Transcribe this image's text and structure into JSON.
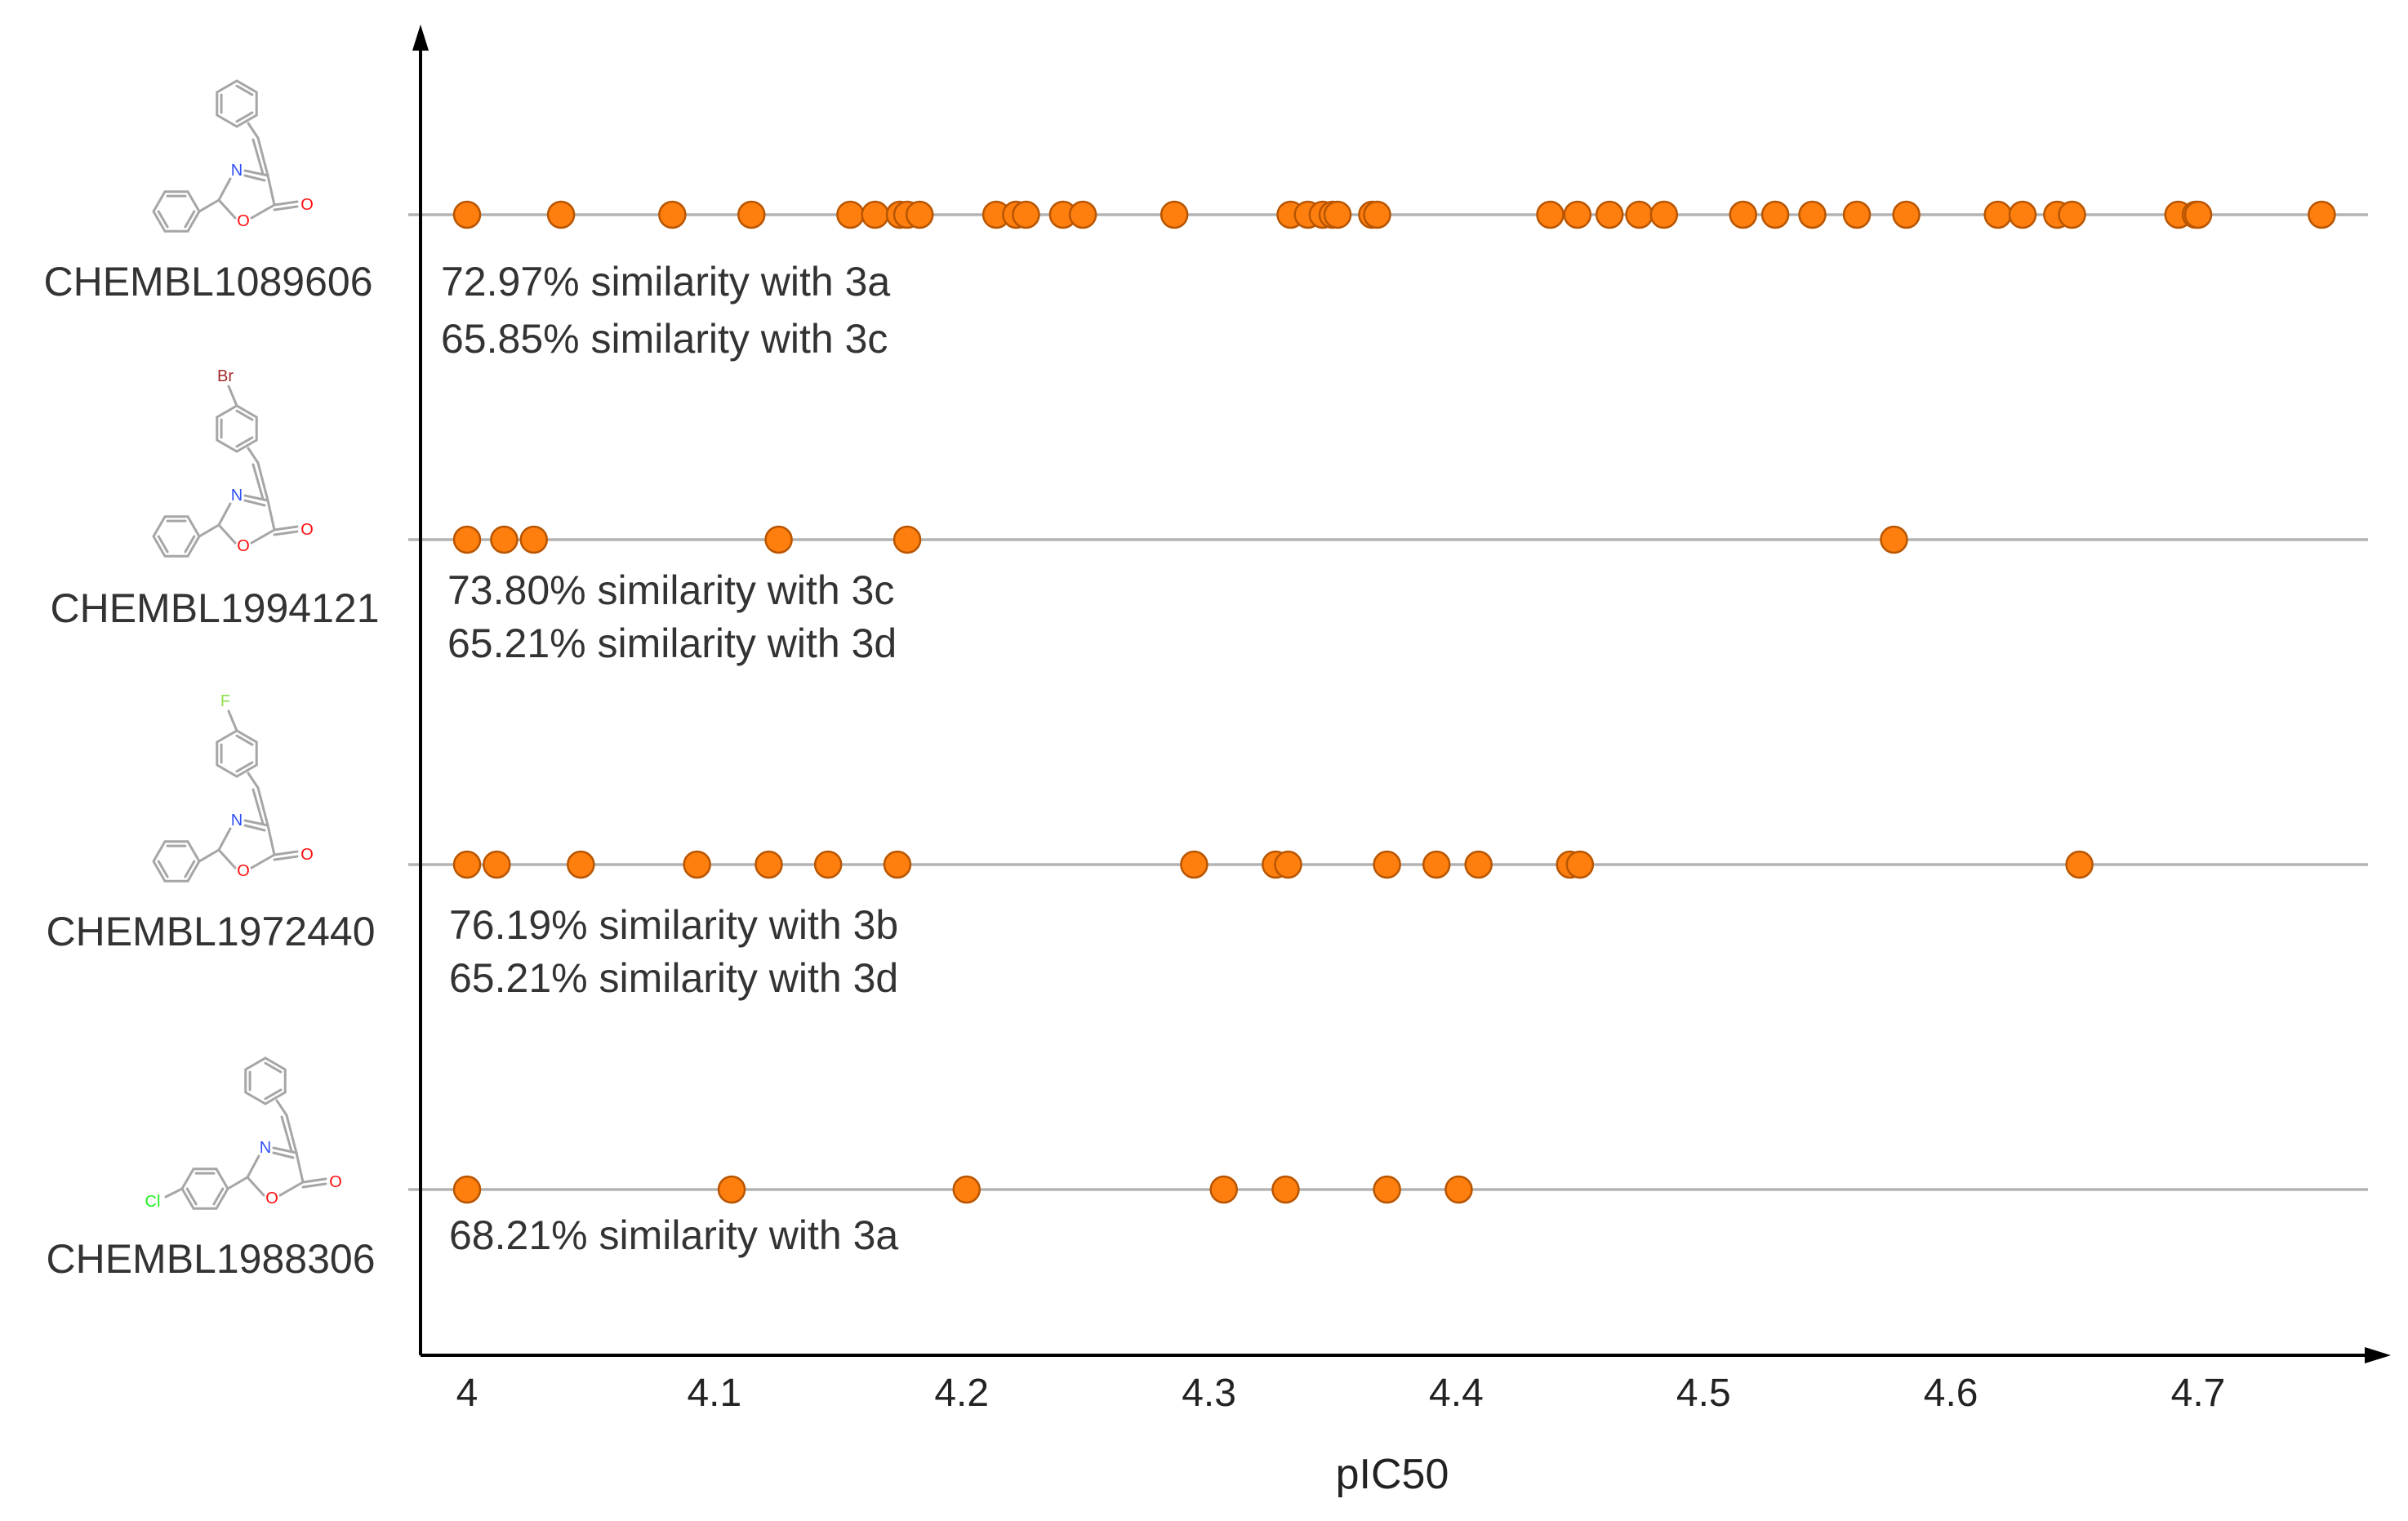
{
  "chart_data": {
    "type": "scatter",
    "xlabel": "pIC50",
    "xlim": [
      3.98,
      4.77
    ],
    "xticks": [
      4,
      4.1,
      4.2,
      4.3,
      4.4,
      4.5,
      4.6,
      4.7
    ],
    "xtick_labels": [
      "4",
      "4.1",
      "4.2",
      "4.3",
      "4.4",
      "4.5",
      "4.6",
      "4.7"
    ],
    "marker_color": "#ff7f0e",
    "rows": [
      {
        "name": "CHEMBL1089606",
        "substituent": "",
        "similarity": [
          "72.97% similarity with 3a",
          "65.85% similarity with 3c"
        ],
        "values": [
          4.0,
          4.038,
          4.083,
          4.115,
          4.155,
          4.165,
          4.175,
          4.178,
          4.183,
          4.214,
          4.222,
          4.226,
          4.241,
          4.249,
          4.286,
          4.333,
          4.34,
          4.346,
          4.35,
          4.352,
          4.366,
          4.368,
          4.438,
          4.449,
          4.462,
          4.474,
          4.484,
          4.516,
          4.529,
          4.544,
          4.562,
          4.582,
          4.619,
          4.629,
          4.643,
          4.649,
          4.692,
          4.699,
          4.7,
          4.75
        ]
      },
      {
        "name": "CHEMBL1994121",
        "substituent": "Br",
        "similarity": [
          "73.80% similarity with 3c",
          "65.21% similarity with 3d"
        ],
        "values": [
          4.0,
          4.015,
          4.027,
          4.126,
          4.178,
          4.577
        ]
      },
      {
        "name": "CHEMBL1972440",
        "substituent": "F",
        "similarity": [
          "76.19% similarity with 3b",
          "65.21% similarity with 3d"
        ],
        "values": [
          4.0,
          4.012,
          4.046,
          4.093,
          4.122,
          4.146,
          4.174,
          4.294,
          4.327,
          4.332,
          4.372,
          4.392,
          4.409,
          4.446,
          4.45,
          4.652
        ]
      },
      {
        "name": "CHEMBL1988306",
        "substituent": "Cl",
        "similarity": [
          "68.21% similarity with 3a"
        ],
        "values": [
          4.0,
          4.107,
          4.202,
          4.306,
          4.331,
          4.372,
          4.401
        ]
      }
    ]
  },
  "atoms": {
    "nitrogen": "N",
    "oxygen": "O"
  },
  "atom_colors": {
    "N": "#3050f8",
    "O": "#ff0d0d",
    "Br": "#a62929",
    "F": "#90e050",
    "Cl": "#1ff01f"
  }
}
